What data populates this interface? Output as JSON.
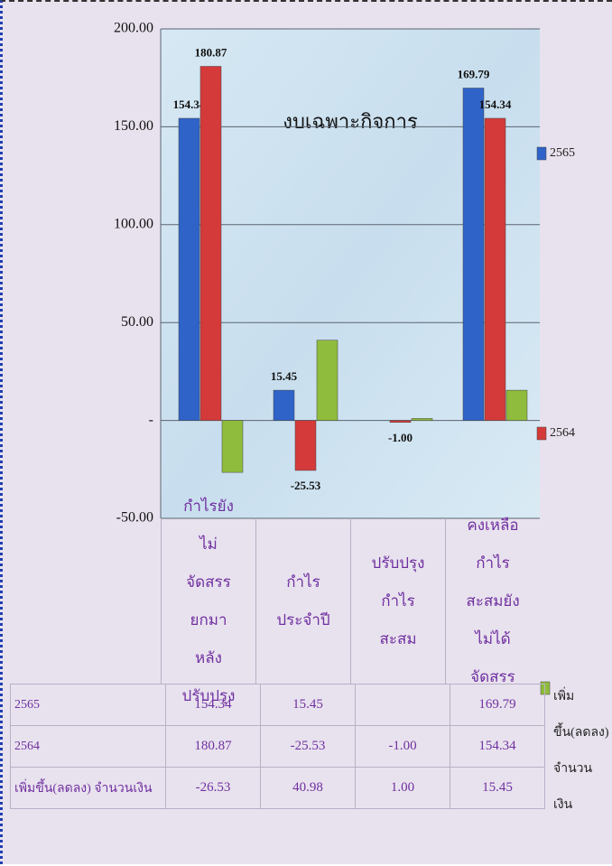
{
  "chart_data": {
    "type": "bar",
    "title": "งบเฉพาะกิจการ",
    "categories": [
      "กำไรยังไม่จัดสรรยกมาหลังปรับปรุง",
      "กำไรประจำปี",
      "ปรับปรุงกำไรสะสม",
      "คงเหลือกำไรสะสมยังไม่ได้จัดสรร"
    ],
    "series": [
      {
        "name": "2565",
        "color": "#2f63c8",
        "values": [
          154.34,
          15.45,
          null,
          169.79
        ],
        "value_labels": [
          "154.34",
          "15.45",
          null,
          "169.79"
        ],
        "table_labels": [
          "154.34",
          "15.45",
          null,
          "169.79"
        ]
      },
      {
        "name": "2564",
        "color": "#d43a3a",
        "values": [
          180.87,
          -25.53,
          -1.0,
          154.34
        ],
        "value_labels": [
          "180.87",
          "-25.53",
          "-1.00",
          "154.34"
        ],
        "table_labels": [
          "180.87",
          "-25.53",
          "-1.00",
          "154.34"
        ]
      },
      {
        "name": "เพิ่มขึ้น(ลดลง) จำนวนเงิน",
        "color": "#8fbc3c",
        "values": [
          -26.53,
          40.98,
          1.0,
          15.45
        ],
        "table_labels": [
          "-26.53",
          "40.98",
          "1.00",
          "15.45"
        ]
      }
    ],
    "ylim": [
      -50,
      200
    ],
    "yticks": [
      {
        "value": -50,
        "label": "-50.00"
      },
      {
        "value": 0,
        "label": "-"
      },
      {
        "value": 50,
        "label": "50.00"
      },
      {
        "value": 100,
        "label": "100.00"
      },
      {
        "value": 150,
        "label": "150.00"
      },
      {
        "value": 200,
        "label": "200.00"
      }
    ],
    "grid": true
  }
}
